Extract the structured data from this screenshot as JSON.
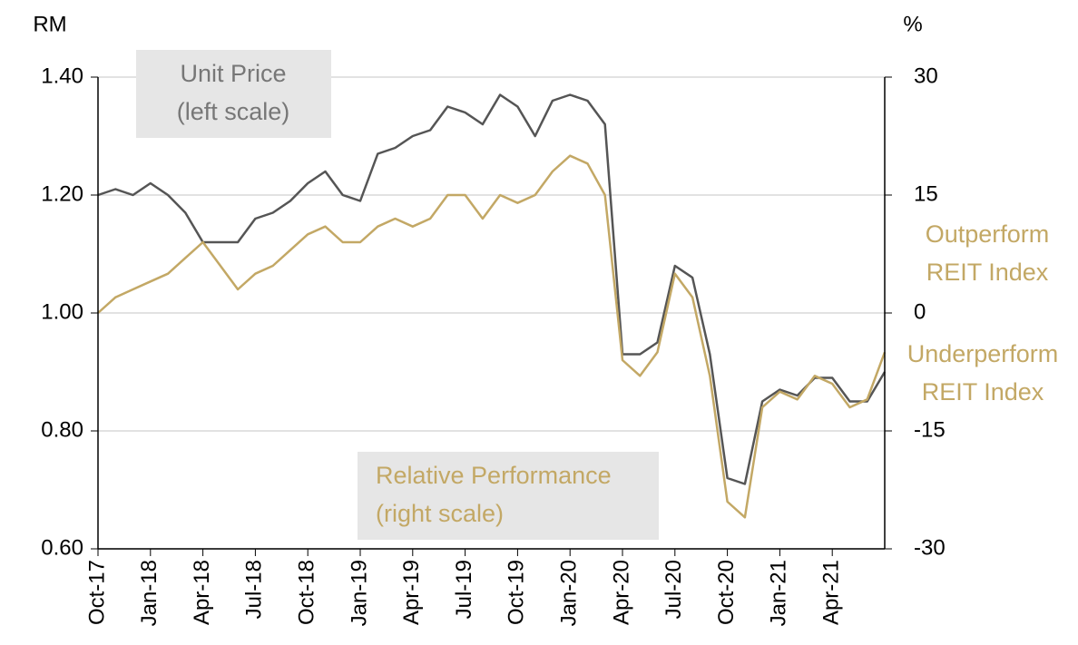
{
  "chart_data": {
    "type": "line",
    "ylabel": "RM",
    "y2label": "%",
    "categories": [
      "Oct-17",
      null,
      null,
      "Jan-18",
      null,
      null,
      "Apr-18",
      null,
      null,
      "Jul-18",
      null,
      null,
      "Oct-18",
      null,
      null,
      "Jan-19",
      null,
      null,
      "Apr-19",
      null,
      null,
      "Jul-19",
      null,
      null,
      "Oct-19",
      null,
      null,
      "Jan-20",
      null,
      null,
      "Apr-20",
      null,
      null,
      "Jul-20",
      null,
      null,
      "Oct-20",
      null,
      null,
      "Jan-21",
      null,
      null,
      "Apr-21",
      null,
      null,
      null
    ],
    "series": [
      {
        "name": "Unit Price",
        "color": "#555555",
        "axis": "y",
        "values": [
          1.2,
          1.21,
          1.2,
          1.22,
          1.2,
          1.17,
          1.12,
          1.12,
          1.12,
          1.16,
          1.17,
          1.19,
          1.22,
          1.24,
          1.2,
          1.19,
          1.27,
          1.28,
          1.3,
          1.31,
          1.35,
          1.34,
          1.32,
          1.37,
          1.35,
          1.3,
          1.36,
          1.37,
          1.36,
          1.32,
          0.93,
          0.93,
          0.95,
          1.08,
          1.06,
          0.93,
          0.72,
          0.71,
          0.85,
          0.87,
          0.86,
          0.89,
          0.89,
          0.85,
          0.85,
          0.9
        ]
      },
      {
        "name": "Relative Performance",
        "color": "#c3a865",
        "axis": "y2",
        "values": [
          0,
          2,
          3,
          4,
          5,
          7,
          9,
          6,
          3,
          5,
          6,
          8,
          10,
          11,
          9,
          9,
          11,
          12,
          11,
          12,
          15,
          15,
          12,
          15,
          14,
          15,
          18,
          20,
          19,
          15,
          -6,
          -8,
          -5,
          5,
          2,
          -8,
          -24,
          -26,
          -12,
          -10,
          -11,
          -8,
          -9,
          -12,
          -11,
          -5
        ]
      }
    ],
    "ylim": [
      0.6,
      1.4
    ],
    "yticks": [
      {
        "value": 0.6,
        "label": "0.60"
      },
      {
        "value": 0.8,
        "label": "0.80"
      },
      {
        "value": 1.0,
        "label": "1.00"
      },
      {
        "value": 1.2,
        "label": "1.20"
      },
      {
        "value": 1.4,
        "label": "1.40"
      }
    ],
    "y2lim": [
      -30,
      30
    ],
    "y2ticks": [
      -30,
      -15,
      0,
      15,
      30
    ],
    "grid": true,
    "annotations": [
      {
        "lines": [
          "Unit Price",
          "(left scale)"
        ]
      },
      {
        "lines": [
          "Relative Performance",
          "(right scale)"
        ]
      },
      {
        "lines": [
          "Outperform",
          "REIT Index"
        ]
      },
      {
        "lines": [
          "Underperform",
          "REIT Index"
        ]
      }
    ]
  }
}
